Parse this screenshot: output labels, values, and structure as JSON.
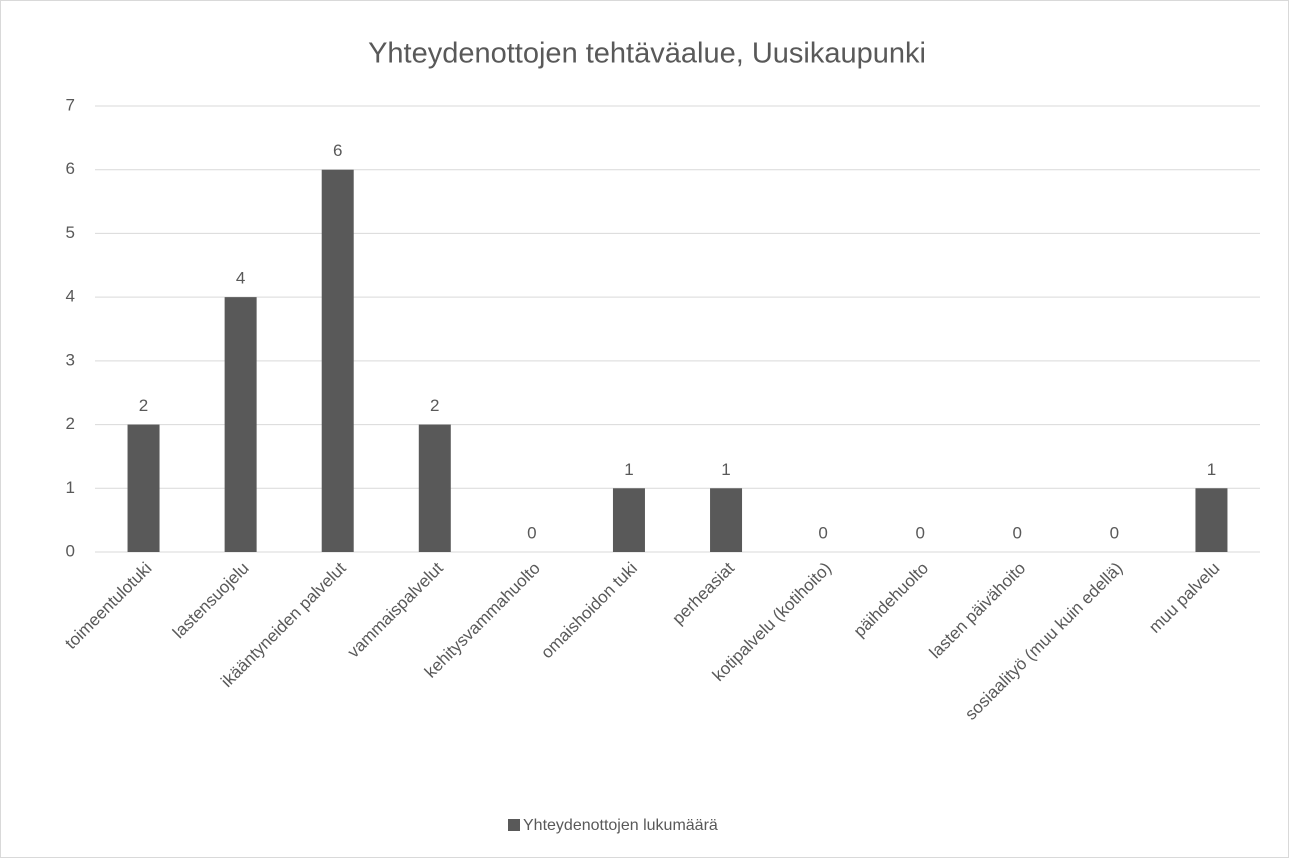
{
  "chart_data": {
    "type": "bar",
    "title": "Yhteydenottojen tehtäväalue, Uusikaupunki",
    "categories": [
      "toimeentulotuki",
      "lastensuojelu",
      "ikääntyneiden palvelut",
      "vammaispalvelut",
      "kehitysvammahuolto",
      "omaishoidon tuki",
      "perheasiat",
      "kotipalvelu (kotihoito)",
      "päihdehuolto",
      "lasten päivähoito",
      "sosiaalityö (muu kuin edellä)",
      "muu palvelu"
    ],
    "series": [
      {
        "name": "Yhteydenottojen lukumäärä",
        "color": "#595959",
        "values": [
          2,
          4,
          6,
          2,
          0,
          1,
          1,
          0,
          0,
          0,
          0,
          1
        ]
      }
    ],
    "ylim": [
      0,
      7
    ],
    "yticks": [
      0,
      1,
      2,
      3,
      4,
      5,
      6,
      7
    ],
    "grid": true,
    "legend": "bottom"
  }
}
